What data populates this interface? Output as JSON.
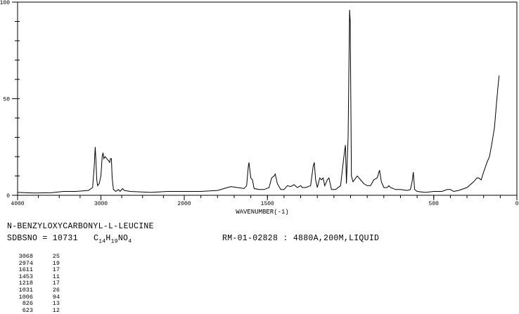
{
  "compound": "N-BENZYLOXYCARBONYL-L-LEUCINE",
  "sdbs_label": "SDBSNO = 10731",
  "formula": {
    "c": "C",
    "c_n": "14",
    "h": "H",
    "h_n": "19",
    "rest": "NO",
    "o_n": "4"
  },
  "measurement": "RM-01-02828 : 4880A,200M,LIQUID",
  "peak_table": [
    {
      "wavenumber": "3068",
      "intensity": "25"
    },
    {
      "wavenumber": "2974",
      "intensity": "19"
    },
    {
      "wavenumber": "1611",
      "intensity": "17"
    },
    {
      "wavenumber": "1453",
      "intensity": "11"
    },
    {
      "wavenumber": "1218",
      "intensity": "17"
    },
    {
      "wavenumber": "1031",
      "intensity": "26"
    },
    {
      "wavenumber": "1006",
      "intensity": "94"
    },
    {
      "wavenumber": "826",
      "intensity": "13"
    },
    {
      "wavenumber": "623",
      "intensity": "12"
    }
  ],
  "chart_data": {
    "type": "line",
    "title": "",
    "xlabel": "WAVENUMBER(-1)",
    "ylabel": "",
    "xlim": [
      4000,
      0
    ],
    "ylim": [
      0,
      100
    ],
    "x_scale_note": "x axis compressed 2x between 4000 and 2000",
    "x_ticks": [
      "4000",
      "3000",
      "2000",
      "1500",
      "500",
      "0"
    ],
    "y_ticks": [
      "0",
      "50",
      "100"
    ],
    "grid": false,
    "color": "#000000",
    "points": [
      [
        4000,
        1.5
      ],
      [
        3800,
        1.2
      ],
      [
        3600,
        1.3
      ],
      [
        3450,
        2
      ],
      [
        3300,
        2
      ],
      [
        3150,
        2.5
      ],
      [
        3100,
        4
      ],
      [
        3080,
        15
      ],
      [
        3068,
        25
      ],
      [
        3060,
        18
      ],
      [
        3050,
        8
      ],
      [
        3040,
        5
      ],
      [
        3020,
        6
      ],
      [
        3000,
        10
      ],
      [
        2985,
        20
      ],
      [
        2975,
        22
      ],
      [
        2965,
        19
      ],
      [
        2950,
        20
      ],
      [
        2930,
        19
      ],
      [
        2910,
        18
      ],
      [
        2895,
        17
      ],
      [
        2885,
        19
      ],
      [
        2874,
        19
      ],
      [
        2865,
        9
      ],
      [
        2850,
        3
      ],
      [
        2820,
        2
      ],
      [
        2790,
        3
      ],
      [
        2770,
        2
      ],
      [
        2740,
        3.5
      ],
      [
        2720,
        2.5
      ],
      [
        2650,
        2
      ],
      [
        2400,
        1.5
      ],
      [
        2200,
        2
      ],
      [
        2000,
        2
      ],
      [
        1900,
        2
      ],
      [
        1800,
        2.5
      ],
      [
        1760,
        3.5
      ],
      [
        1720,
        4.5
      ],
      [
        1680,
        4
      ],
      [
        1640,
        3.5
      ],
      [
        1625,
        5
      ],
      [
        1615,
        15
      ],
      [
        1611,
        17
      ],
      [
        1600,
        9
      ],
      [
        1590,
        8
      ],
      [
        1580,
        3.5
      ],
      [
        1550,
        3
      ],
      [
        1520,
        3
      ],
      [
        1490,
        4
      ],
      [
        1475,
        9
      ],
      [
        1460,
        10
      ],
      [
        1453,
        11
      ],
      [
        1440,
        6
      ],
      [
        1420,
        3
      ],
      [
        1400,
        3
      ],
      [
        1380,
        5
      ],
      [
        1360,
        4.5
      ],
      [
        1340,
        5.5
      ],
      [
        1320,
        4
      ],
      [
        1300,
        5
      ],
      [
        1290,
        4
      ],
      [
        1270,
        4
      ],
      [
        1240,
        5
      ],
      [
        1225,
        15
      ],
      [
        1218,
        17
      ],
      [
        1210,
        8
      ],
      [
        1200,
        4
      ],
      [
        1185,
        9
      ],
      [
        1175,
        8
      ],
      [
        1165,
        9
      ],
      [
        1155,
        5
      ],
      [
        1140,
        8
      ],
      [
        1130,
        9
      ],
      [
        1115,
        3
      ],
      [
        1090,
        3
      ],
      [
        1060,
        5
      ],
      [
        1040,
        20
      ],
      [
        1031,
        26
      ],
      [
        1025,
        6
      ],
      [
        1015,
        30
      ],
      [
        1006,
        96
      ],
      [
        1002,
        90
      ],
      [
        995,
        10
      ],
      [
        985,
        7
      ],
      [
        960,
        10
      ],
      [
        940,
        8
      ],
      [
        920,
        6
      ],
      [
        900,
        5
      ],
      [
        880,
        5
      ],
      [
        860,
        8
      ],
      [
        840,
        9
      ],
      [
        826,
        13
      ],
      [
        815,
        7
      ],
      [
        800,
        4
      ],
      [
        780,
        4
      ],
      [
        770,
        5
      ],
      [
        760,
        4
      ],
      [
        730,
        3
      ],
      [
        700,
        3
      ],
      [
        660,
        2.5
      ],
      [
        640,
        3
      ],
      [
        630,
        7
      ],
      [
        623,
        12
      ],
      [
        615,
        3
      ],
      [
        600,
        2
      ],
      [
        550,
        1.5
      ],
      [
        500,
        2
      ],
      [
        450,
        2
      ],
      [
        420,
        3
      ],
      [
        400,
        3
      ],
      [
        380,
        2
      ],
      [
        350,
        2.5
      ],
      [
        300,
        4
      ],
      [
        260,
        7
      ],
      [
        240,
        9
      ],
      [
        230,
        9
      ],
      [
        215,
        8
      ],
      [
        200,
        12
      ],
      [
        180,
        17
      ],
      [
        165,
        20
      ],
      [
        150,
        27
      ],
      [
        135,
        35
      ],
      [
        125,
        45
      ],
      [
        115,
        55
      ],
      [
        107,
        62
      ]
    ]
  }
}
